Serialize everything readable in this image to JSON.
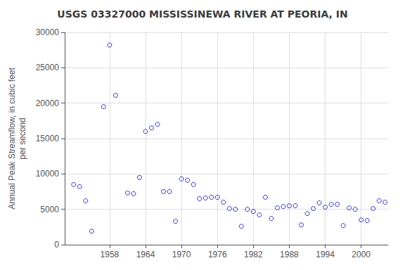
{
  "chart_data": {
    "type": "scatter",
    "title": "USGS 03327000 MISSISSINEWA RIVER AT PEORIA, IN",
    "ylabel": "Annual Peak Streamflow, in cubic feet\nper second",
    "xlim": [
      1950.5,
      2004.5
    ],
    "ylim": [
      0,
      30000
    ],
    "xticks": [
      1958,
      1964,
      1970,
      1976,
      1982,
      1988,
      1994,
      2000
    ],
    "yticks": [
      0,
      5000,
      10000,
      15000,
      20000,
      25000,
      30000
    ],
    "grid": true,
    "color": "#0000cc",
    "marker": "circle",
    "x": [
      1952,
      1953,
      1954,
      1955,
      1957,
      1958,
      1959,
      1961,
      1962,
      1963,
      1964,
      1965,
      1966,
      1967,
      1968,
      1969,
      1970,
      1971,
      1972,
      1973,
      1974,
      1975,
      1976,
      1977,
      1978,
      1979,
      1980,
      1981,
      1982,
      1983,
      1984,
      1985,
      1986,
      1987,
      1988,
      1989,
      1990,
      1991,
      1992,
      1993,
      1994,
      1995,
      1996,
      1997,
      1998,
      1999,
      2000,
      2001,
      2002,
      2003,
      2004
    ],
    "values": [
      8500,
      8200,
      6200,
      1900,
      19500,
      28200,
      21100,
      7300,
      7200,
      9500,
      16000,
      16500,
      17000,
      7500,
      7500,
      3300,
      9300,
      9100,
      8500,
      6500,
      6600,
      6700,
      6700,
      6000,
      5100,
      5000,
      2600,
      5000,
      4700,
      4200,
      6700,
      3700,
      5200,
      5400,
      5500,
      5500,
      2800,
      4400,
      5100,
      5900,
      5300,
      5700,
      5700,
      2700,
      5200,
      5000,
      3500,
      3400,
      5100,
      6200,
      6000
    ]
  }
}
